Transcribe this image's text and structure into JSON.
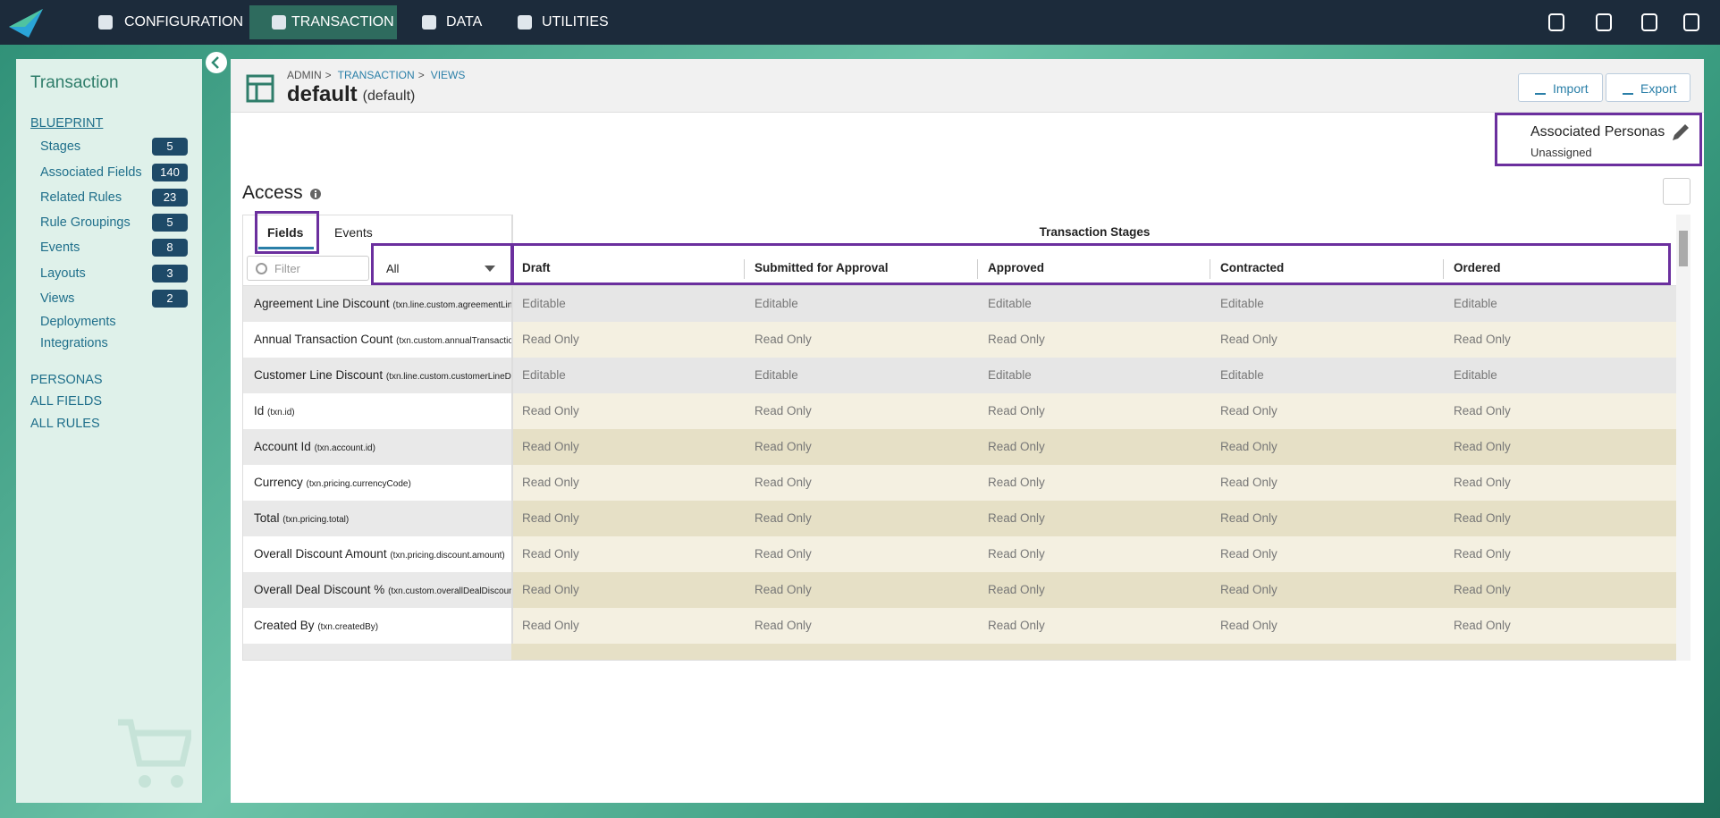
{
  "nav": {
    "items": [
      "CONFIGURATION",
      "TRANSACTION",
      "DATA",
      "UTILITIES"
    ]
  },
  "sidebar": {
    "title": "Transaction",
    "section": "BLUEPRINT",
    "links": [
      {
        "label": "Stages",
        "count": 5
      },
      {
        "label": "Associated Fields",
        "count": 140
      },
      {
        "label": "Related Rules",
        "count": 23
      },
      {
        "label": "Rule Groupings",
        "count": 5
      },
      {
        "label": "Events",
        "count": 8
      },
      {
        "label": "Layouts",
        "count": 3
      },
      {
        "label": "Views",
        "count": 2
      },
      {
        "label": "Deployments"
      },
      {
        "label": "Integrations"
      }
    ],
    "bottom_links": [
      "PERSONAS",
      "ALL FIELDS",
      "ALL RULES"
    ]
  },
  "header": {
    "breadcrumb": [
      "ADMIN",
      "TRANSACTION",
      "VIEWS"
    ],
    "title": "default",
    "subtitle": "(default)",
    "buttons": [
      "Import",
      "Export"
    ]
  },
  "personas": {
    "label": "Associated Personas",
    "value": "Unassigned"
  },
  "access": {
    "title": "Access",
    "tabs": [
      "Fields",
      "Events"
    ],
    "filter_placeholder": "Filter",
    "select": "All",
    "group_header": "Transaction Stages",
    "columns": [
      "Draft",
      "Submitted for Approval",
      "Approved",
      "Contracted",
      "Ordered"
    ],
    "rows": [
      {
        "field": "Agreement Line Discount",
        "key": "(txn.line.custom.agreementLin",
        "values": [
          "Editable",
          "Editable",
          "Editable",
          "Editable",
          "Editable"
        ]
      },
      {
        "field": "Annual Transaction Count",
        "key": "(txn.custom.annualTransaction",
        "values": [
          "Read Only",
          "Read Only",
          "Read Only",
          "Read Only",
          "Read Only"
        ]
      },
      {
        "field": "Customer Line Discount",
        "key": "(txn.line.custom.customerLineDi",
        "values": [
          "Editable",
          "Editable",
          "Editable",
          "Editable",
          "Editable"
        ]
      },
      {
        "field": "Id",
        "key": "(txn.id)",
        "values": [
          "Read Only",
          "Read Only",
          "Read Only",
          "Read Only",
          "Read Only"
        ]
      },
      {
        "field": "Account Id",
        "key": "(txn.account.id)",
        "values": [
          "Read Only",
          "Read Only",
          "Read Only",
          "Read Only",
          "Read Only"
        ]
      },
      {
        "field": "Currency",
        "key": "(txn.pricing.currencyCode)",
        "values": [
          "Read Only",
          "Read Only",
          "Read Only",
          "Read Only",
          "Read Only"
        ]
      },
      {
        "field": "Total",
        "key": "(txn.pricing.total)",
        "values": [
          "Read Only",
          "Read Only",
          "Read Only",
          "Read Only",
          "Read Only"
        ]
      },
      {
        "field": "Overall Discount Amount",
        "key": "(txn.pricing.discount.amount)",
        "values": [
          "Read Only",
          "Read Only",
          "Read Only",
          "Read Only",
          "Read Only"
        ]
      },
      {
        "field": "Overall Deal Discount %",
        "key": "(txn.custom.overallDealDiscount",
        "values": [
          "Read Only",
          "Read Only",
          "Read Only",
          "Read Only",
          "Read Only"
        ]
      },
      {
        "field": "Created By",
        "key": "(txn.createdBy)",
        "values": [
          "Read Only",
          "Read Only",
          "Read Only",
          "Read Only",
          "Read Only"
        ]
      }
    ]
  }
}
